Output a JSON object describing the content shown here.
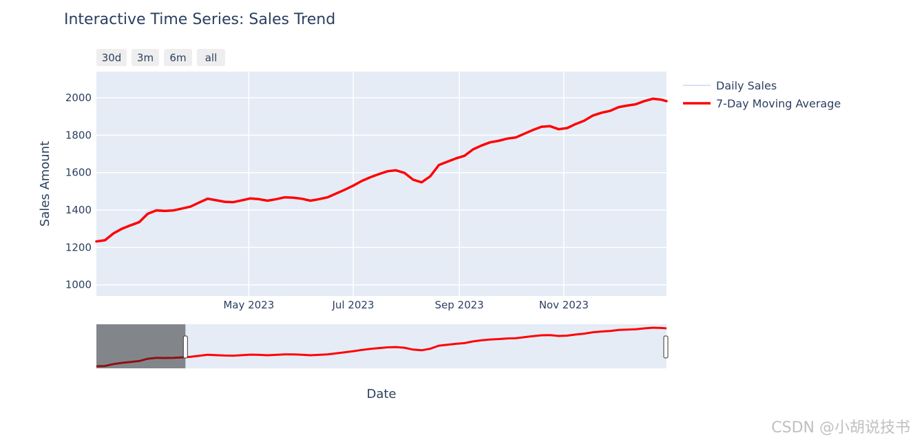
{
  "title": "Interactive Time Series: Sales Trend",
  "range_buttons": [
    "30d",
    "3m",
    "6m",
    "all"
  ],
  "watermark": "CSDN @小胡说技书",
  "chart_data": {
    "type": "line",
    "title": "Interactive Time Series: Sales Trend",
    "xlabel": "Date",
    "ylabel": "Sales Amount",
    "x_range": [
      "2023-02-01",
      "2023-12-31"
    ],
    "ylim": [
      940,
      2140
    ],
    "x_ticks": [
      "May 2023",
      "Jul 2023",
      "Sep 2023",
      "Nov 2023"
    ],
    "x_tick_dates": [
      "2023-05-01",
      "2023-07-01",
      "2023-09-01",
      "2023-11-01"
    ],
    "y_ticks": [
      1000,
      1200,
      1400,
      1600,
      1800,
      2000
    ],
    "grid": true,
    "legend": "right",
    "rangeslider": true,
    "rangeslider_window": [
      "2023-03-25",
      "2023-12-31"
    ],
    "series": [
      {
        "name": "Daily Sales",
        "color": "#c9d9ee",
        "x": [
          "2023-02-01",
          "2023-02-06",
          "2023-02-11",
          "2023-02-16",
          "2023-02-21",
          "2023-02-26",
          "2023-03-03",
          "2023-03-08",
          "2023-03-13",
          "2023-03-18",
          "2023-03-23",
          "2023-03-28",
          "2023-04-02",
          "2023-04-07",
          "2023-04-12",
          "2023-04-17",
          "2023-04-22",
          "2023-04-27",
          "2023-05-02",
          "2023-05-07",
          "2023-05-12",
          "2023-05-17",
          "2023-05-22",
          "2023-05-27",
          "2023-06-01",
          "2023-06-06",
          "2023-06-11",
          "2023-06-16",
          "2023-06-21",
          "2023-06-26",
          "2023-07-01",
          "2023-07-06",
          "2023-07-11",
          "2023-07-16",
          "2023-07-21",
          "2023-07-26",
          "2023-07-31",
          "2023-08-05",
          "2023-08-10",
          "2023-08-15",
          "2023-08-20",
          "2023-08-25",
          "2023-08-30",
          "2023-09-04",
          "2023-09-09",
          "2023-09-14",
          "2023-09-19",
          "2023-09-24",
          "2023-09-29",
          "2023-10-04",
          "2023-10-09",
          "2023-10-14",
          "2023-10-19",
          "2023-10-24",
          "2023-10-29",
          "2023-11-03",
          "2023-11-08",
          "2023-11-13",
          "2023-11-18",
          "2023-11-23",
          "2023-11-28",
          "2023-12-03",
          "2023-12-08",
          "2023-12-13",
          "2023-12-18",
          "2023-12-23",
          "2023-12-28",
          "2023-12-31"
        ],
        "values": [
          1235,
          1245,
          1285,
          1310,
          1325,
          1345,
          1395,
          1410,
          1400,
          1400,
          1412,
          1420,
          1445,
          1470,
          1458,
          1448,
          1440,
          1455,
          1468,
          1460,
          1452,
          1462,
          1472,
          1470,
          1465,
          1452,
          1460,
          1470,
          1492,
          1512,
          1535,
          1560,
          1580,
          1595,
          1610,
          1618,
          1600,
          1565,
          1550,
          1585,
          1645,
          1662,
          1680,
          1695,
          1728,
          1748,
          1765,
          1772,
          1785,
          1790,
          1810,
          1830,
          1848,
          1852,
          1835,
          1840,
          1862,
          1882,
          1910,
          1925,
          1935,
          1955,
          1962,
          1970,
          1988,
          2000,
          1995,
          1985
        ]
      },
      {
        "name": "7-Day Moving Average",
        "color": "#ff0000",
        "x": [
          "2023-02-01",
          "2023-02-06",
          "2023-02-11",
          "2023-02-16",
          "2023-02-21",
          "2023-02-26",
          "2023-03-03",
          "2023-03-08",
          "2023-03-13",
          "2023-03-18",
          "2023-03-23",
          "2023-03-28",
          "2023-04-02",
          "2023-04-07",
          "2023-04-12",
          "2023-04-17",
          "2023-04-22",
          "2023-04-27",
          "2023-05-02",
          "2023-05-07",
          "2023-05-12",
          "2023-05-17",
          "2023-05-22",
          "2023-05-27",
          "2023-06-01",
          "2023-06-06",
          "2023-06-11",
          "2023-06-16",
          "2023-06-21",
          "2023-06-26",
          "2023-07-01",
          "2023-07-06",
          "2023-07-11",
          "2023-07-16",
          "2023-07-21",
          "2023-07-26",
          "2023-07-31",
          "2023-08-05",
          "2023-08-10",
          "2023-08-15",
          "2023-08-20",
          "2023-08-25",
          "2023-08-30",
          "2023-09-04",
          "2023-09-09",
          "2023-09-14",
          "2023-09-19",
          "2023-09-24",
          "2023-09-29",
          "2023-10-04",
          "2023-10-09",
          "2023-10-14",
          "2023-10-19",
          "2023-10-24",
          "2023-10-29",
          "2023-11-03",
          "2023-11-08",
          "2023-11-13",
          "2023-11-18",
          "2023-11-23",
          "2023-11-28",
          "2023-12-03",
          "2023-12-08",
          "2023-12-13",
          "2023-12-18",
          "2023-12-23",
          "2023-12-28",
          "2023-12-31"
        ],
        "values": [
          1232,
          1238,
          1275,
          1300,
          1318,
          1335,
          1380,
          1398,
          1395,
          1398,
          1408,
          1418,
          1440,
          1460,
          1452,
          1444,
          1442,
          1452,
          1462,
          1458,
          1450,
          1458,
          1468,
          1466,
          1460,
          1450,
          1458,
          1468,
          1488,
          1508,
          1530,
          1555,
          1575,
          1592,
          1607,
          1612,
          1598,
          1562,
          1548,
          1580,
          1640,
          1658,
          1676,
          1690,
          1724,
          1745,
          1762,
          1770,
          1782,
          1788,
          1808,
          1828,
          1845,
          1848,
          1832,
          1838,
          1860,
          1878,
          1905,
          1920,
          1930,
          1950,
          1958,
          1965,
          1982,
          1995,
          1990,
          1982
        ]
      }
    ]
  }
}
